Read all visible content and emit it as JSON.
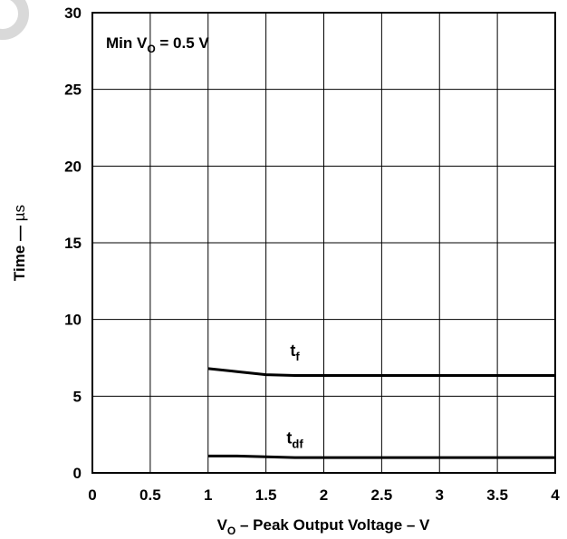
{
  "chart_data": {
    "type": "line",
    "title": "",
    "xlabel": {
      "pre": "V",
      "sub": "O",
      "post": " – Peak Output Voltage – V"
    },
    "ylabel": {
      "pre": "Time — ",
      "unit": "µs"
    },
    "xlim": [
      0,
      4
    ],
    "ylim": [
      0,
      30
    ],
    "xticks": [
      0,
      0.5,
      1,
      1.5,
      2,
      2.5,
      3,
      3.5,
      4
    ],
    "xtick_labels": [
      "0",
      "0.5",
      "1",
      "1.5",
      "2",
      "2.5",
      "3",
      "3.5",
      "4"
    ],
    "yticks": [
      0,
      5,
      10,
      15,
      20,
      25,
      30
    ],
    "ytick_labels": [
      "0",
      "5",
      "10",
      "15",
      "20",
      "25",
      "30"
    ],
    "grid": true,
    "annotation": {
      "pre": "Min V",
      "sub": "O",
      "post": " = 0.5 V"
    },
    "series": [
      {
        "label": {
          "main": "t",
          "sub": "f"
        },
        "x": [
          1.0,
          1.25,
          1.5,
          1.75,
          2.0,
          2.5,
          3.0,
          3.5,
          4.0
        ],
        "y": [
          6.8,
          6.6,
          6.4,
          6.35,
          6.35,
          6.35,
          6.35,
          6.35,
          6.35
        ]
      },
      {
        "label": {
          "main": "t",
          "sub": "df"
        },
        "x": [
          1.0,
          1.25,
          1.5,
          1.75,
          2.0,
          2.5,
          3.0,
          3.5,
          4.0
        ],
        "y": [
          1.1,
          1.1,
          1.05,
          1.0,
          1.0,
          1.0,
          1.0,
          1.0,
          1.0
        ]
      }
    ]
  }
}
